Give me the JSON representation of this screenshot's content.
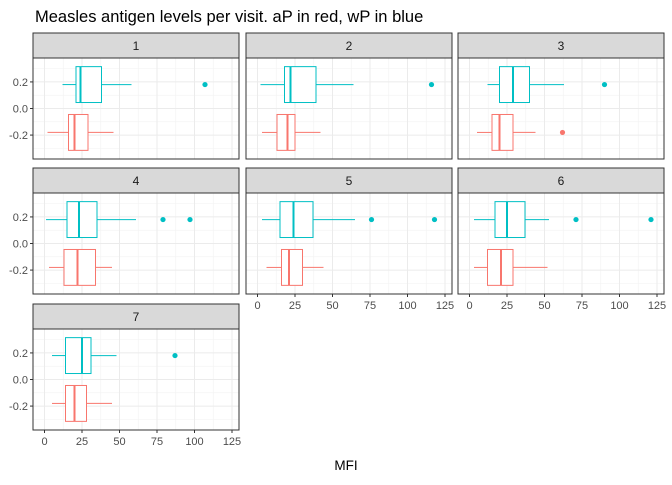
{
  "chart_data": {
    "type": "boxplot",
    "title": "Measles antigen levels per visit. aP in red, wP in blue",
    "xlabel": "MFI",
    "ylabel": "",
    "xlim": [
      -3,
      125
    ],
    "ylim": [
      -0.38,
      0.38
    ],
    "x_ticks": [
      0,
      25,
      50,
      75,
      100,
      125
    ],
    "y_ticks": [
      -0.2,
      0.0,
      0.2
    ],
    "y_tick_labels": [
      "-0.2",
      "0.0",
      "0.2"
    ],
    "grid": true,
    "legend": "none",
    "series": [
      {
        "color": "#F8766D",
        "y_position": -0.18
      },
      {
        "color": "#00BFC4",
        "y_position": 0.18
      }
    ],
    "panels": [
      {
        "label": "1",
        "aP": {
          "whisker_low": 2,
          "q1": 16,
          "median": 20,
          "q3": 29,
          "whisker_high": 46,
          "outliers": []
        },
        "wP": {
          "whisker_low": 12,
          "q1": 21,
          "median": 24,
          "q3": 38,
          "whisker_high": 58,
          "outliers": [
            107
          ]
        }
      },
      {
        "label": "2",
        "aP": {
          "whisker_low": 3,
          "q1": 13,
          "median": 20,
          "q3": 25,
          "whisker_high": 42,
          "outliers": []
        },
        "wP": {
          "whisker_low": 2,
          "q1": 18,
          "median": 22,
          "q3": 39,
          "whisker_high": 64,
          "outliers": [
            116
          ]
        }
      },
      {
        "label": "3",
        "aP": {
          "whisker_low": 5,
          "q1": 15,
          "median": 20,
          "q3": 29,
          "whisker_high": 44,
          "outliers": [
            62
          ]
        },
        "wP": {
          "whisker_low": 12,
          "q1": 20,
          "median": 29,
          "q3": 40,
          "whisker_high": 63,
          "outliers": [
            90
          ]
        }
      },
      {
        "label": "4",
        "aP": {
          "whisker_low": 3,
          "q1": 13,
          "median": 22,
          "q3": 34,
          "whisker_high": 45,
          "outliers": []
        },
        "wP": {
          "whisker_low": 1,
          "q1": 15,
          "median": 23,
          "q3": 35,
          "whisker_high": 61,
          "outliers": [
            79,
            97
          ]
        }
      },
      {
        "label": "5",
        "aP": {
          "whisker_low": 6,
          "q1": 16,
          "median": 21,
          "q3": 30,
          "whisker_high": 44,
          "outliers": []
        },
        "wP": {
          "whisker_low": 3,
          "q1": 15,
          "median": 24,
          "q3": 37,
          "whisker_high": 65,
          "outliers": [
            76,
            118
          ]
        }
      },
      {
        "label": "6",
        "aP": {
          "whisker_low": 3,
          "q1": 12,
          "median": 21,
          "q3": 29,
          "whisker_high": 52,
          "outliers": []
        },
        "wP": {
          "whisker_low": 3,
          "q1": 17,
          "median": 25,
          "q3": 37,
          "whisker_high": 53,
          "outliers": [
            71,
            121
          ]
        }
      },
      {
        "label": "7",
        "aP": {
          "whisker_low": 5,
          "q1": 14,
          "median": 20,
          "q3": 28,
          "whisker_high": 45,
          "outliers": []
        },
        "wP": {
          "whisker_low": 5,
          "q1": 14,
          "median": 25,
          "q3": 31,
          "whisker_high": 48,
          "outliers": [
            87
          ]
        }
      }
    ]
  }
}
